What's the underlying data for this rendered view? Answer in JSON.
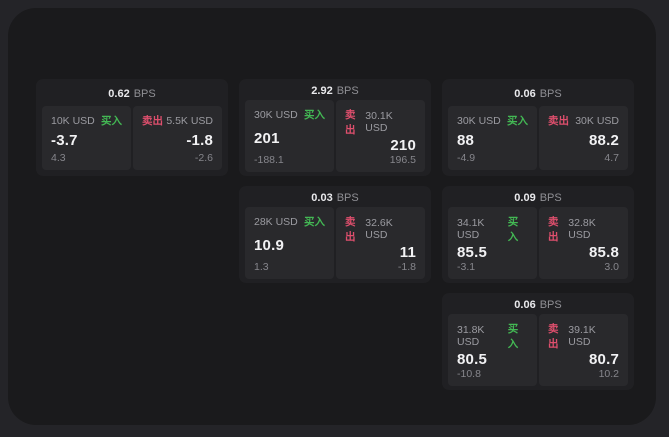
{
  "labels": {
    "buy": "买入",
    "sell": "卖出",
    "bps_unit": "BPS"
  },
  "colors": {
    "buy": "#43b854",
    "sell": "#df4f6d",
    "outer_bg": "#242428",
    "panel_bg": "#1a1a1c",
    "card_bg": "#202023",
    "pane_bg": "#29292c"
  },
  "cards": [
    {
      "bps": "0.62",
      "row": 1,
      "col": 1,
      "buy": {
        "amount": "10K USD",
        "price": "-3.7",
        "delta": "4.3"
      },
      "sell": {
        "amount": "5.5K USD",
        "price": "-1.8",
        "delta": "-2.6"
      }
    },
    {
      "bps": "2.92",
      "row": 1,
      "col": 2,
      "buy": {
        "amount": "30K USD",
        "price": "201",
        "delta": "-188.1"
      },
      "sell": {
        "amount": "30.1K USD",
        "price": "210",
        "delta": "196.5"
      }
    },
    {
      "bps": "0.06",
      "row": 1,
      "col": 3,
      "buy": {
        "amount": "30K USD",
        "price": "88",
        "delta": "-4.9"
      },
      "sell": {
        "amount": "30K USD",
        "price": "88.2",
        "delta": "4.7"
      }
    },
    {
      "bps": "0.03",
      "row": 2,
      "col": 2,
      "buy": {
        "amount": "28K USD",
        "price": "10.9",
        "delta": "1.3"
      },
      "sell": {
        "amount": "32.6K USD",
        "price": "11",
        "delta": "-1.8"
      }
    },
    {
      "bps": "0.09",
      "row": 2,
      "col": 3,
      "buy": {
        "amount": "34.1K USD",
        "price": "85.5",
        "delta": "-3.1"
      },
      "sell": {
        "amount": "32.8K USD",
        "price": "85.8",
        "delta": "3.0"
      }
    },
    {
      "bps": "0.06",
      "row": 3,
      "col": 3,
      "buy": {
        "amount": "31.8K USD",
        "price": "80.5",
        "delta": "-10.8"
      },
      "sell": {
        "amount": "39.1K USD",
        "price": "80.7",
        "delta": "10.2"
      }
    }
  ]
}
